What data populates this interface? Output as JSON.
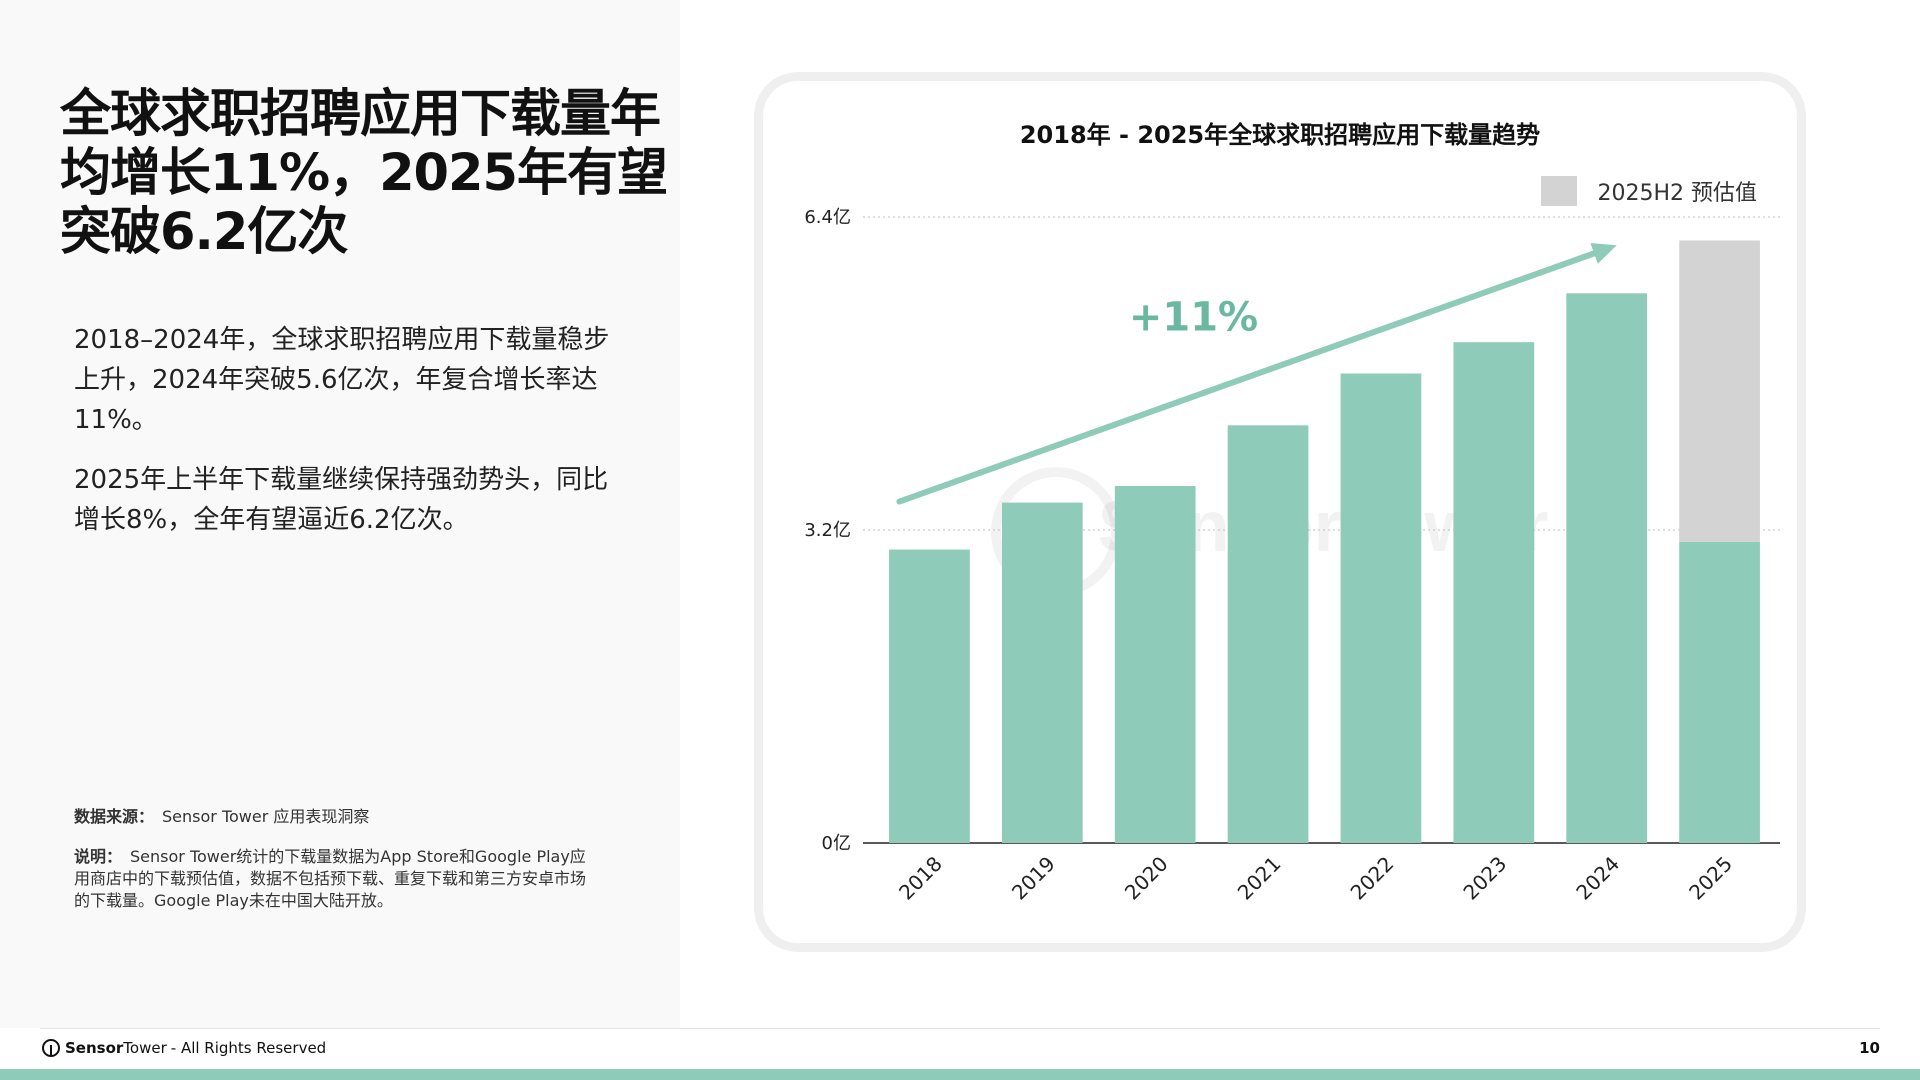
{
  "slide": {
    "headline": "全球求职招聘应用下载量年均增长11%，2025年有望突破6.2亿次",
    "paragraph1": "2018–2024年，全球求职招聘应用下载量稳步上升，2024年突破5.6亿次，年复合增长率达11%。",
    "paragraph2": "2025年上半年下载量继续保持强劲势头，同比增长8%，全年有望逼近6.2亿次。",
    "source_label": "数据来源：",
    "source_text": "Sensor Tower 应用表现洞察",
    "note_label": "说明：",
    "note_text": "Sensor Tower统计的下载量数据为App Store和Google Play应用商店中的下载预估值，数据不包括预下载、重复下载和第三方安卓市场的下载量。Google Play未在中国大陆开放。"
  },
  "footer": {
    "brand_bold": "Sensor",
    "brand_regular": "Tower",
    "rights": "- All Rights Reserved",
    "page_number": "10"
  },
  "watermark": "SensorTower",
  "colors": {
    "bar": "#8ecbb9",
    "estimate": "#d3d3d3",
    "arrow": "#8ecbb9",
    "cagr_text": "#6bb8a0",
    "accent_bar": "#8ecbb9"
  },
  "chart_data": {
    "type": "bar",
    "title": "2018年 - 2025年全球求职招聘应用下载量趋势",
    "categories": [
      "2018",
      "2019",
      "2020",
      "2021",
      "2022",
      "2023",
      "2024",
      "2025"
    ],
    "series": [
      {
        "values": [
          3.0,
          3.48,
          3.65,
          4.27,
          4.8,
          5.12,
          5.62,
          3.08
        ]
      },
      {
        "name": "2025H2 预估值",
        "values": [
          0,
          0,
          0,
          0,
          0,
          0,
          0,
          3.08
        ]
      }
    ],
    "stacked": true,
    "ylim": [
      0,
      6.4
    ],
    "yticks": [
      {
        "value": 0,
        "label": "0亿"
      },
      {
        "value": 3.2,
        "label": "3.2亿"
      },
      {
        "value": 6.4,
        "label": "6.4亿"
      }
    ],
    "grid": true,
    "legend_position": "top-right",
    "annotation": {
      "text": "+11%",
      "type": "trend-arrow",
      "from": "2018",
      "to": "2024"
    }
  }
}
